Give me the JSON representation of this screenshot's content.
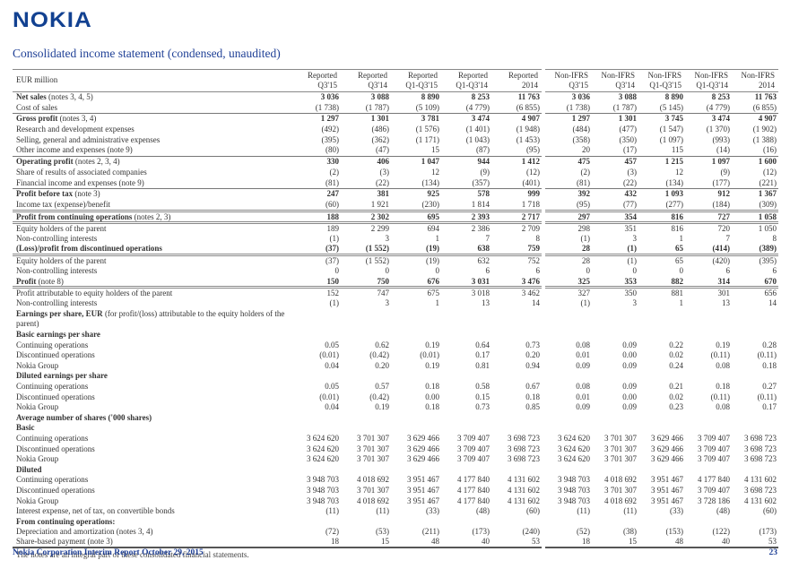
{
  "logo": "NOKIA",
  "title": "Consolidated income statement (condensed, unaudited)",
  "colors": {
    "nokia_blue": "#124191",
    "title_blue": "#1F4096"
  },
  "table": {
    "unit_label": "EUR million",
    "col_groups": [
      "Reported",
      "Non-IFRS"
    ],
    "periods": [
      "Q3'15",
      "Q3'14",
      "Q1-Q3'15",
      "Q1-Q3'14",
      "2014"
    ],
    "rows": [
      {
        "lb": "Net sales",
        "lr": " (notes 3, 4, 5)",
        "rep": [
          "3 036",
          "3 088",
          "8 890",
          "8 253",
          "11 763"
        ],
        "non": [
          "3 036",
          "3 088",
          "8 890",
          "8 253",
          "11 763"
        ]
      },
      {
        "lr": "Cost of sales",
        "rep": [
          "(1 738)",
          "(1 787)",
          "(5 109)",
          "(4 779)",
          "(6 855)"
        ],
        "non": [
          "(1 738)",
          "(1 787)",
          "(5 145)",
          "(4 779)",
          "(6 855)"
        ]
      },
      {
        "lb": "Gross profit",
        "lr": " (notes 3, 4)",
        "bt": 1,
        "rep": [
          "1 297",
          "1 301",
          "3 781",
          "3 474",
          "4 907"
        ],
        "non": [
          "1 297",
          "1 301",
          "3 745",
          "3 474",
          "4 907"
        ]
      },
      {
        "lr": "Research and development expenses",
        "rep": [
          "(492)",
          "(486)",
          "(1 576)",
          "(1 401)",
          "(1 948)"
        ],
        "non": [
          "(484)",
          "(477)",
          "(1 547)",
          "(1 370)",
          "(1 902)"
        ]
      },
      {
        "lr": "Selling, general and administrative expenses",
        "rep": [
          "(395)",
          "(362)",
          "(1 171)",
          "(1 043)",
          "(1 453)"
        ],
        "non": [
          "(358)",
          "(350)",
          "(1 097)",
          "(993)",
          "(1 388)"
        ]
      },
      {
        "lr": "Other income and expenses (note 9)",
        "rep": [
          "(80)",
          "(47)",
          "15",
          "(87)",
          "(95)"
        ],
        "non": [
          "20",
          "(17)",
          "115",
          "(14)",
          "(16)"
        ]
      },
      {
        "lb": "Operating profit",
        "lr": " (notes 2, 3, 4)",
        "bt": 1,
        "rep": [
          "330",
          "406",
          "1 047",
          "944",
          "1 412"
        ],
        "non": [
          "475",
          "457",
          "1 215",
          "1 097",
          "1 600"
        ]
      },
      {
        "lr": "Share of results of associated companies",
        "rep": [
          "(2)",
          "(3)",
          "12",
          "(9)",
          "(12)"
        ],
        "non": [
          "(2)",
          "(3)",
          "12",
          "(9)",
          "(12)"
        ]
      },
      {
        "lr": "Financial income and expenses (note 9)",
        "rep": [
          "(81)",
          "(22)",
          "(134)",
          "(357)",
          "(401)"
        ],
        "non": [
          "(81)",
          "(22)",
          "(134)",
          "(177)",
          "(221)"
        ]
      },
      {
        "lb": "Profit before tax",
        "lr": " (note 3)",
        "bt": 1,
        "rep": [
          "247",
          "381",
          "925",
          "578",
          "999"
        ],
        "non": [
          "392",
          "432",
          "1 093",
          "912",
          "1 367"
        ]
      },
      {
        "lr": "Income tax (expense)/benefit",
        "rep": [
          "(60)",
          "1 921",
          "(230)",
          "1 814",
          "1 718"
        ],
        "non": [
          "(95)",
          "(77)",
          "(277)",
          "(184)",
          "(309)"
        ]
      },
      {
        "lb": "Profit from continuing operations",
        "lr": " (notes 2, 3)",
        "bt": 2,
        "rep": [
          "188",
          "2 302",
          "695",
          "2 393",
          "2 717"
        ],
        "non": [
          "297",
          "354",
          "816",
          "727",
          "1 058"
        ]
      },
      {
        "lr": "Equity holders of the parent",
        "bt": 2,
        "rep": [
          "189",
          "2 299",
          "694",
          "2 386",
          "2 709"
        ],
        "non": [
          "298",
          "351",
          "816",
          "720",
          "1 050"
        ]
      },
      {
        "lr": "Non-controlling interests",
        "rep": [
          "(1)",
          "3",
          "1",
          "7",
          "8"
        ],
        "non": [
          "(1)",
          "3",
          "1",
          "7",
          "8"
        ]
      },
      {
        "lb": "(Loss)/profit from discontinued operations",
        "rep": [
          "(37)",
          "(1 552)",
          "(19)",
          "638",
          "759"
        ],
        "non": [
          "28",
          "(1)",
          "65",
          "(414)",
          "(389)"
        ]
      },
      {
        "lr": "Equity holders of the parent",
        "bt": 2,
        "rep": [
          "(37)",
          "(1 552)",
          "(19)",
          "632",
          "752"
        ],
        "non": [
          "28",
          "(1)",
          "65",
          "(420)",
          "(395)"
        ]
      },
      {
        "lr": "Non-controlling interests",
        "rep": [
          "0",
          "0",
          "0",
          "6",
          "6"
        ],
        "non": [
          "0",
          "0",
          "0",
          "6",
          "6"
        ]
      },
      {
        "lb": "Profit",
        "lr": " (note 8)",
        "rep": [
          "150",
          "750",
          "676",
          "3 031",
          "3 476"
        ],
        "non": [
          "325",
          "353",
          "882",
          "314",
          "670"
        ]
      },
      {
        "lr": "Profit attributable to equity holders of the parent",
        "bt": 2,
        "rep": [
          "152",
          "747",
          "675",
          "3 018",
          "3 462"
        ],
        "non": [
          "327",
          "350",
          "881",
          "301",
          "656"
        ]
      },
      {
        "lr": "Non-controlling interests",
        "rep": [
          "(1)",
          "3",
          "1",
          "13",
          "14"
        ],
        "non": [
          "(1)",
          "3",
          "1",
          "13",
          "14"
        ]
      },
      {
        "lb": "Earnings per share, EUR",
        "lr": " (for profit/(loss) attributable to the equity holders of the parent)",
        "wrap": true,
        "rep": [],
        "non": []
      },
      {
        "lb": "Basic earnings per share",
        "rep": [],
        "non": []
      },
      {
        "lr": "Continuing operations",
        "rep": [
          "0.05",
          "0.62",
          "0.19",
          "0.64",
          "0.73"
        ],
        "non": [
          "0.08",
          "0.09",
          "0.22",
          "0.19",
          "0.28"
        ]
      },
      {
        "lr": "Discontinued operations",
        "rep": [
          "(0.01)",
          "(0.42)",
          "(0.01)",
          "0.17",
          "0.20"
        ],
        "non": [
          "0.01",
          "0.00",
          "0.02",
          "(0.11)",
          "(0.11)"
        ]
      },
      {
        "lr": "Nokia Group",
        "rep": [
          "0.04",
          "0.20",
          "0.19",
          "0.81",
          "0.94"
        ],
        "non": [
          "0.09",
          "0.09",
          "0.24",
          "0.08",
          "0.18"
        ]
      },
      {
        "lb": "Diluted earnings per share",
        "rep": [],
        "non": []
      },
      {
        "lr": "Continuing operations",
        "rep": [
          "0.05",
          "0.57",
          "0.18",
          "0.58",
          "0.67"
        ],
        "non": [
          "0.08",
          "0.09",
          "0.21",
          "0.18",
          "0.27"
        ]
      },
      {
        "lr": "Discontinued operations",
        "rep": [
          "(0.01)",
          "(0.42)",
          "0.00",
          "0.15",
          "0.18"
        ],
        "non": [
          "0.01",
          "0.00",
          "0.02",
          "(0.11)",
          "(0.11)"
        ]
      },
      {
        "lr": "Nokia Group",
        "rep": [
          "0.04",
          "0.19",
          "0.18",
          "0.73",
          "0.85"
        ],
        "non": [
          "0.09",
          "0.09",
          "0.23",
          "0.08",
          "0.17"
        ]
      },
      {
        "lb": "Average number of shares ('000 shares)",
        "rep": [],
        "non": []
      },
      {
        "lb": "Basic",
        "rep": [],
        "non": []
      },
      {
        "lr": "Continuing operations",
        "rep": [
          "3 624 620",
          "3 701 307",
          "3 629 466",
          "3 709 407",
          "3 698 723"
        ],
        "non": [
          "3 624 620",
          "3 701 307",
          "3 629 466",
          "3 709 407",
          "3 698 723"
        ]
      },
      {
        "lr": "Discontinued operations",
        "rep": [
          "3 624 620",
          "3 701 307",
          "3 629 466",
          "3 709 407",
          "3 698 723"
        ],
        "non": [
          "3 624 620",
          "3 701 307",
          "3 629 466",
          "3 709 407",
          "3 698 723"
        ]
      },
      {
        "lr": "Nokia Group",
        "rep": [
          "3 624 620",
          "3 701 307",
          "3 629 466",
          "3 709 407",
          "3 698 723"
        ],
        "non": [
          "3 624 620",
          "3 701 307",
          "3 629 466",
          "3 709 407",
          "3 698 723"
        ]
      },
      {
        "lb": "Diluted",
        "rep": [],
        "non": []
      },
      {
        "lr": "Continuing operations",
        "rep": [
          "3 948 703",
          "4 018 692",
          "3 951 467",
          "4 177 840",
          "4 131 602"
        ],
        "non": [
          "3 948 703",
          "4 018 692",
          "3 951 467",
          "4 177 840",
          "4 131 602"
        ]
      },
      {
        "lr": "Discontinued operations",
        "rep": [
          "3 948 703",
          "3 701 307",
          "3 951 467",
          "4 177 840",
          "4 131 602"
        ],
        "non": [
          "3 948 703",
          "3 701 307",
          "3 951 467",
          "3 709 407",
          "3 698 723"
        ]
      },
      {
        "lr": "Nokia Group",
        "rep": [
          "3 948 703",
          "4 018 692",
          "3 951 467",
          "4 177 840",
          "4 131 602"
        ],
        "non": [
          "3 948 703",
          "4 018 692",
          "3 951 467",
          "3 728 186",
          "4 131 602"
        ]
      },
      {
        "lr": "Interest expense, net of tax, on convertible bonds",
        "rep": [
          "(11)",
          "(11)",
          "(33)",
          "(48)",
          "(60)"
        ],
        "non": [
          "(11)",
          "(11)",
          "(33)",
          "(48)",
          "(60)"
        ]
      },
      {
        "lb": "From continuing operations:",
        "rep": [],
        "non": []
      },
      {
        "lr": "Depreciation and amortization (notes 3, 4)",
        "rep": [
          "(72)",
          "(53)",
          "(211)",
          "(173)",
          "(240)"
        ],
        "non": [
          "(52)",
          "(38)",
          "(153)",
          "(122)",
          "(173)"
        ]
      },
      {
        "lr": "Share-based payment (note 3)",
        "bb": true,
        "rep": [
          "18",
          "15",
          "48",
          "40",
          "53"
        ],
        "non": [
          "18",
          "15",
          "48",
          "40",
          "53"
        ]
      }
    ]
  },
  "footnote": "The notes are an integral part of these consolidated financial statements.",
  "footer": {
    "left": "Nokia Corporation Interim Report October 29, 2015",
    "page": "23"
  }
}
